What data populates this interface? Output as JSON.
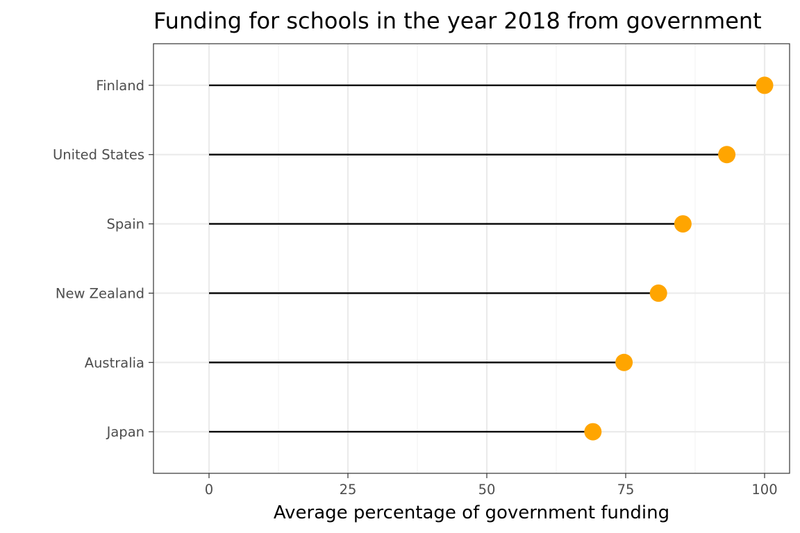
{
  "chart_data": {
    "type": "lollipop",
    "title": "Funding for schools in the year 2018 from government",
    "xlabel": "Average percentage of government funding",
    "ylabel": "",
    "categories": [
      "Finland",
      "United States",
      "Spain",
      "New Zealand",
      "Australia",
      "Japan"
    ],
    "values": [
      100,
      93.2,
      85.3,
      80.9,
      74.7,
      69.1
    ],
    "xlim": [
      -10,
      104.5
    ],
    "xticks": [
      0,
      25,
      50,
      75,
      100
    ],
    "grid": true,
    "colors": {
      "point": "#FFA500",
      "stem": "#000000",
      "grid_major": "#ebebeb",
      "grid_minor": "#f2f2f2",
      "panel_border": "#333333"
    }
  }
}
